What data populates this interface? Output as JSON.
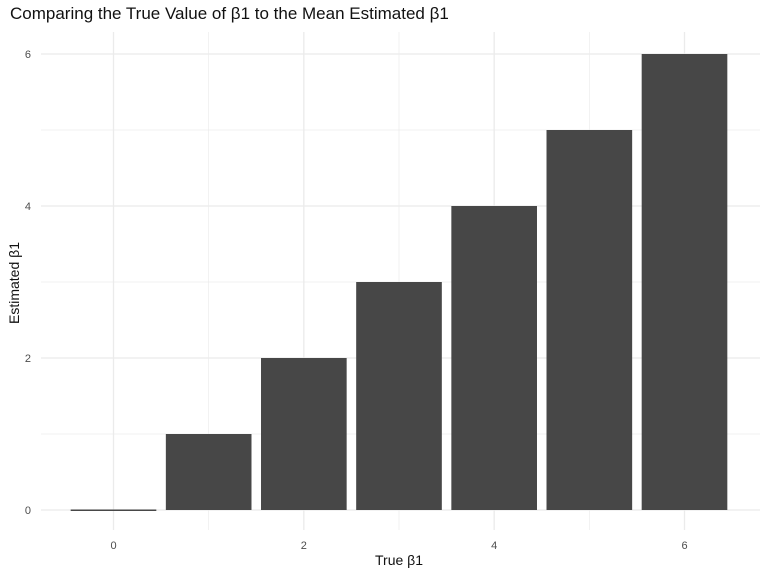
{
  "chart_data": {
    "type": "bar",
    "title": "Comparing the True Value of β1 to the Mean Estimated β1",
    "xlabel": "True β1",
    "ylabel": "Estimated β1",
    "x": [
      0,
      1,
      2,
      3,
      4,
      5,
      6
    ],
    "values": [
      -0.01,
      1,
      2,
      3,
      4,
      5,
      6
    ],
    "xlim": [
      -0.5,
      6.5
    ],
    "ylim": [
      0,
      6
    ],
    "x_ticks": [
      0,
      2,
      4,
      6
    ],
    "y_ticks": [
      0,
      2,
      4,
      6
    ],
    "grid": true,
    "bar_color": "#474747",
    "grid_color": "#ebebeb",
    "legend": "none"
  }
}
